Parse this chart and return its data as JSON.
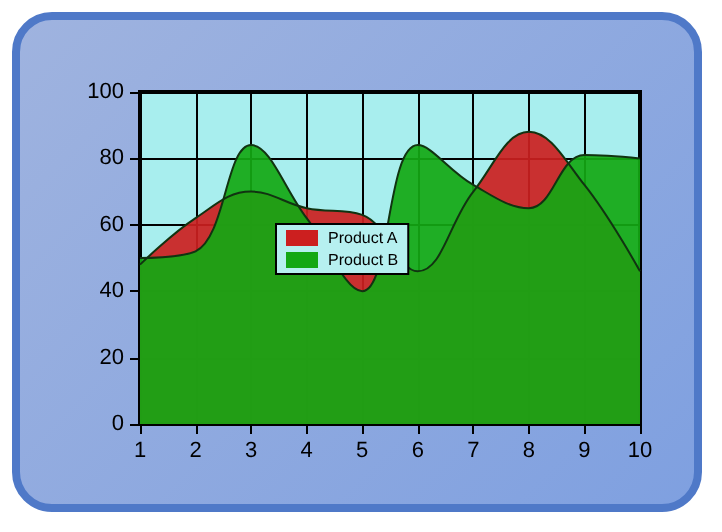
{
  "chart_data": {
    "type": "area",
    "categories": [
      "1",
      "2",
      "3",
      "4",
      "5",
      "6",
      "7",
      "8",
      "9",
      "10"
    ],
    "series": [
      {
        "name": "Product A",
        "color": "#cc1f1f",
        "values": [
          48,
          62,
          70,
          65,
          63,
          46,
          70,
          88,
          72,
          46
        ]
      },
      {
        "name": "Product B",
        "color": "#14a814",
        "values": [
          50,
          52,
          84,
          62,
          40,
          84,
          72,
          65,
          81,
          80
        ]
      }
    ],
    "ylim": [
      0,
      100
    ],
    "yticks": [
      0,
      20,
      40,
      60,
      80,
      100
    ],
    "grid": true,
    "legend": "center"
  }
}
